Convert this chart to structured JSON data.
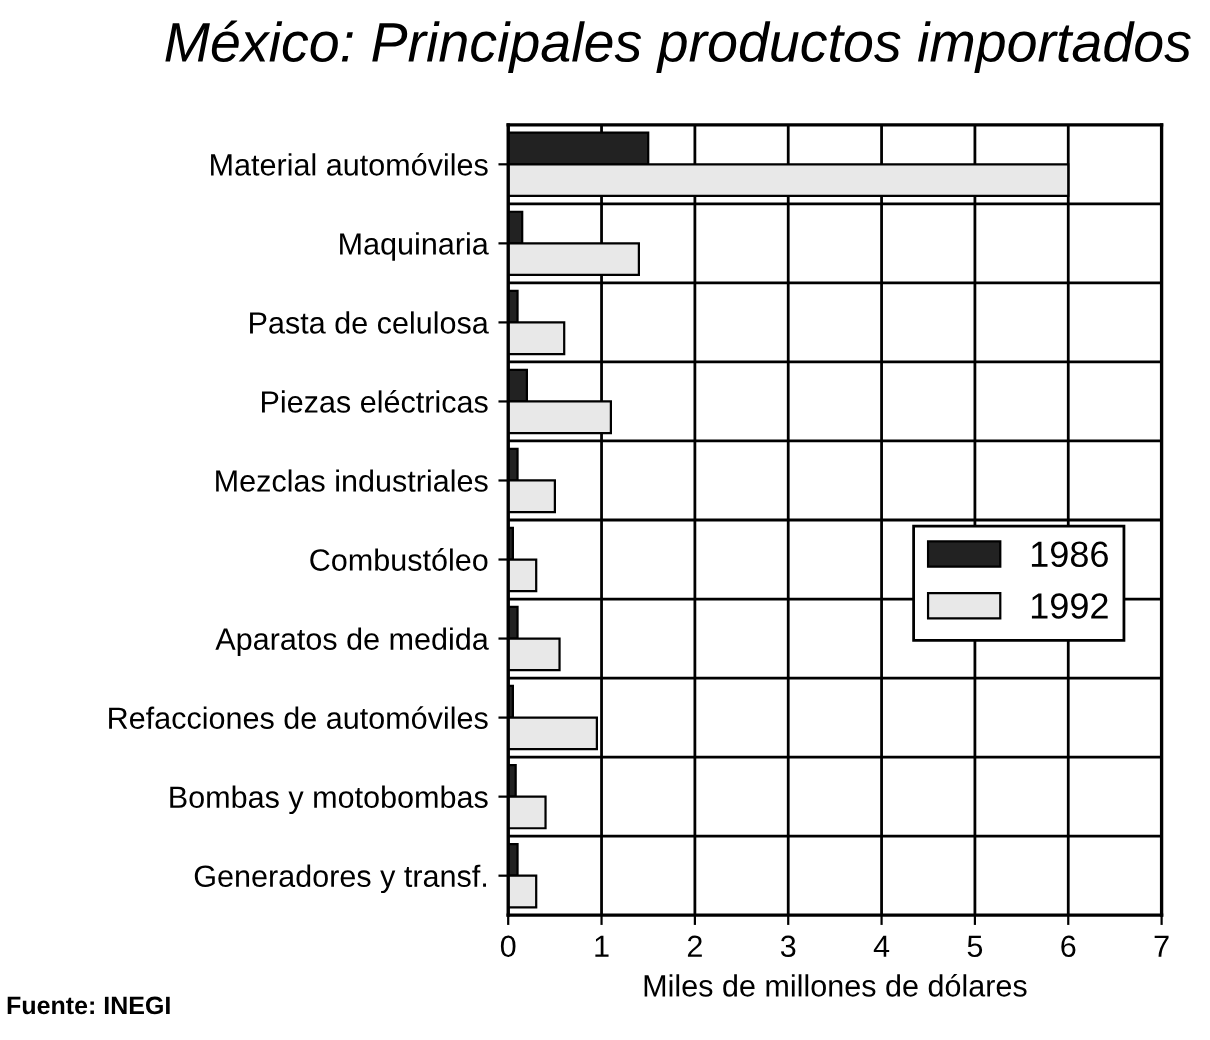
{
  "chart_data": {
    "type": "bar",
    "orientation": "horizontal",
    "title": "México: Principales productos importados",
    "xlabel": "Miles de millones de dólares",
    "categories": [
      "Material automóviles",
      "Maquinaria",
      "Pasta de celulosa",
      "Piezas eléctricas",
      "Mezclas industriales",
      "Combustóleo",
      "Aparatos de medida",
      "Refacciones de automóviles",
      "Bombas y motobombas",
      "Generadores y transf."
    ],
    "series": [
      {
        "name": "1986",
        "color": "#222222",
        "values": [
          1.5,
          0.15,
          0.1,
          0.2,
          0.1,
          0.05,
          0.1,
          0.05,
          0.08,
          0.1
        ]
      },
      {
        "name": "1992",
        "color": "#e8e8e8",
        "values": [
          6.0,
          1.4,
          0.6,
          1.1,
          0.5,
          0.3,
          0.55,
          0.95,
          0.4,
          0.3
        ]
      }
    ],
    "xlim": [
      0,
      7
    ],
    "xticks": [
      0,
      1,
      2,
      3,
      4,
      5,
      6,
      7
    ],
    "grid": true,
    "legend": "right",
    "annotations": [
      "Fuente: INEGI"
    ]
  }
}
